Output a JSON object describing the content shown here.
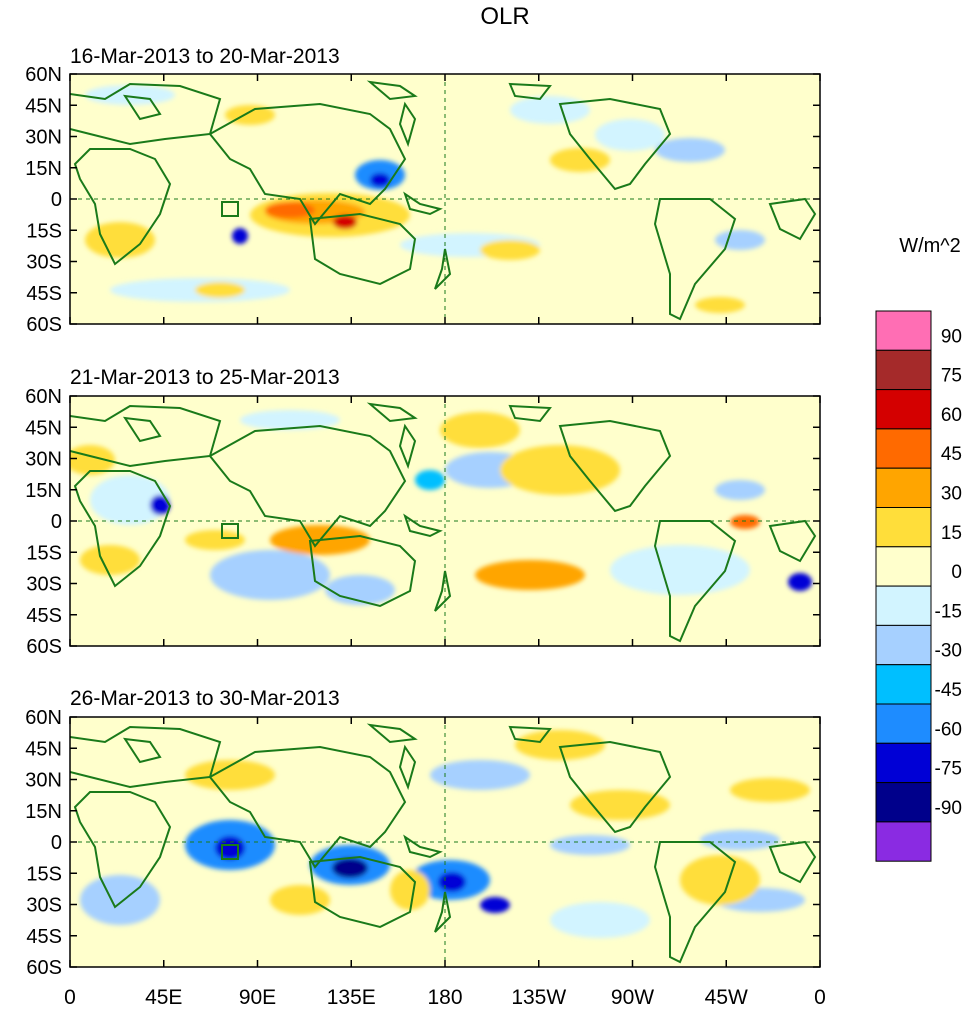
{
  "title": "OLR",
  "panels": [
    {
      "label": "16-Mar-2013 to 20-Mar-2013"
    },
    {
      "label": "21-Mar-2013 to 25-Mar-2013"
    },
    {
      "label": "26-Mar-2013 to 30-Mar-2013"
    }
  ],
  "lat_ticks": [
    "60N",
    "45N",
    "30N",
    "15N",
    "0",
    "15S",
    "30S",
    "45S",
    "60S"
  ],
  "lon_ticks": [
    "0",
    "45E",
    "90E",
    "135E",
    "180",
    "135W",
    "90W",
    "45W",
    "0"
  ],
  "colorbar": {
    "units": "W/m^2",
    "labels": [
      "90",
      "75",
      "60",
      "45",
      "30",
      "15",
      "0",
      "-15",
      "-30",
      "-45",
      "-60",
      "-75",
      "-90"
    ],
    "colors": [
      "#ff6eb4",
      "#a52a2a",
      "#d40000",
      "#ff6a00",
      "#ffa500",
      "#ffde3a",
      "#ffffcc",
      "#d2f4ff",
      "#a6d0ff",
      "#00bfff",
      "#1e8cff",
      "#0000d6",
      "#00008b",
      "#8a2be2"
    ]
  },
  "colors": {
    "coast": "#1a7a1a",
    "neutral": "#ffffcc"
  }
}
